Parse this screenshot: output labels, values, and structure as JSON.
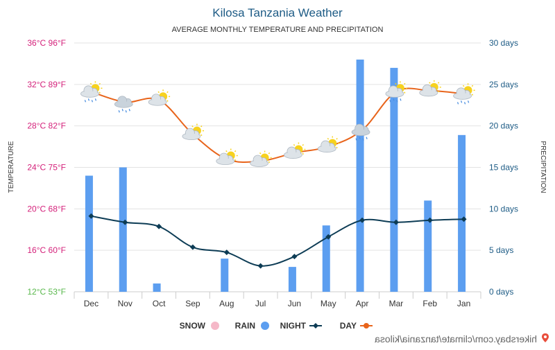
{
  "chart_data": {
    "type": "bar",
    "title": "Kilosa Tanzania Weather",
    "subtitle": "AVERAGE MONTHLY TEMPERATURE AND PRECIPITATION",
    "categories": [
      "Jan",
      "Feb",
      "Mar",
      "Apr",
      "May",
      "Jun",
      "Jul",
      "Aug",
      "Sep",
      "Oct",
      "Nov",
      "Dec"
    ],
    "y_left": {
      "label": "PRECIPITATION",
      "range": [
        0,
        30
      ],
      "ticks": [
        "0 days",
        "5 days",
        "10 days",
        "15 days",
        "20 days",
        "25 days",
        "30 days"
      ]
    },
    "y_right": {
      "label": "TEMPERATURE",
      "range_c": [
        12,
        36
      ],
      "ticks": [
        "12°C 53°F",
        "16°C 60°F",
        "20°C 68°F",
        "24°C 75°F",
        "28°C 82°F",
        "32°C 89°F",
        "36°C 96°F"
      ]
    },
    "series": [
      {
        "name": "DAY",
        "kind": "line",
        "axis": "temperature",
        "color": "#e8641b",
        "values": [
          31.1,
          31.4,
          31.3,
          27.6,
          26.0,
          25.4,
          24.6,
          24.8,
          27.2,
          30.5,
          30.3,
          31.3
        ]
      },
      {
        "name": "NIGHT",
        "kind": "line",
        "axis": "temperature",
        "color": "#0d3c55",
        "values": [
          19.0,
          18.9,
          18.7,
          18.9,
          17.3,
          15.4,
          14.5,
          15.8,
          16.3,
          18.3,
          18.7,
          19.3
        ]
      },
      {
        "name": "RAIN",
        "kind": "bar",
        "axis": "precipitation",
        "color": "#5c9ef0",
        "values": [
          18.9,
          11.0,
          27.0,
          28.0,
          8.0,
          3.0,
          0,
          4.0,
          0,
          1.0,
          15.0,
          14.0
        ]
      },
      {
        "name": "SNOW",
        "kind": "bar",
        "axis": "precipitation",
        "color": "#f5b8c8",
        "values": [
          0,
          0,
          0,
          0,
          0,
          0,
          0,
          0,
          0,
          0,
          0,
          0
        ]
      }
    ],
    "weather_icons": [
      "sun-cloud-rain",
      "sun-cloud",
      "sun-cloud-rain",
      "cloud-rain",
      "sun-cloud",
      "sun-cloud",
      "sun-cloud",
      "sun-cloud",
      "sun-cloud",
      "sun-cloud",
      "cloud-rain",
      "sun-cloud-rain"
    ],
    "legend": {
      "placement": "bottom"
    },
    "grid": true,
    "x_order": "reversed"
  },
  "credit": "hikersbay.com/climate/tanzania/kilosa"
}
